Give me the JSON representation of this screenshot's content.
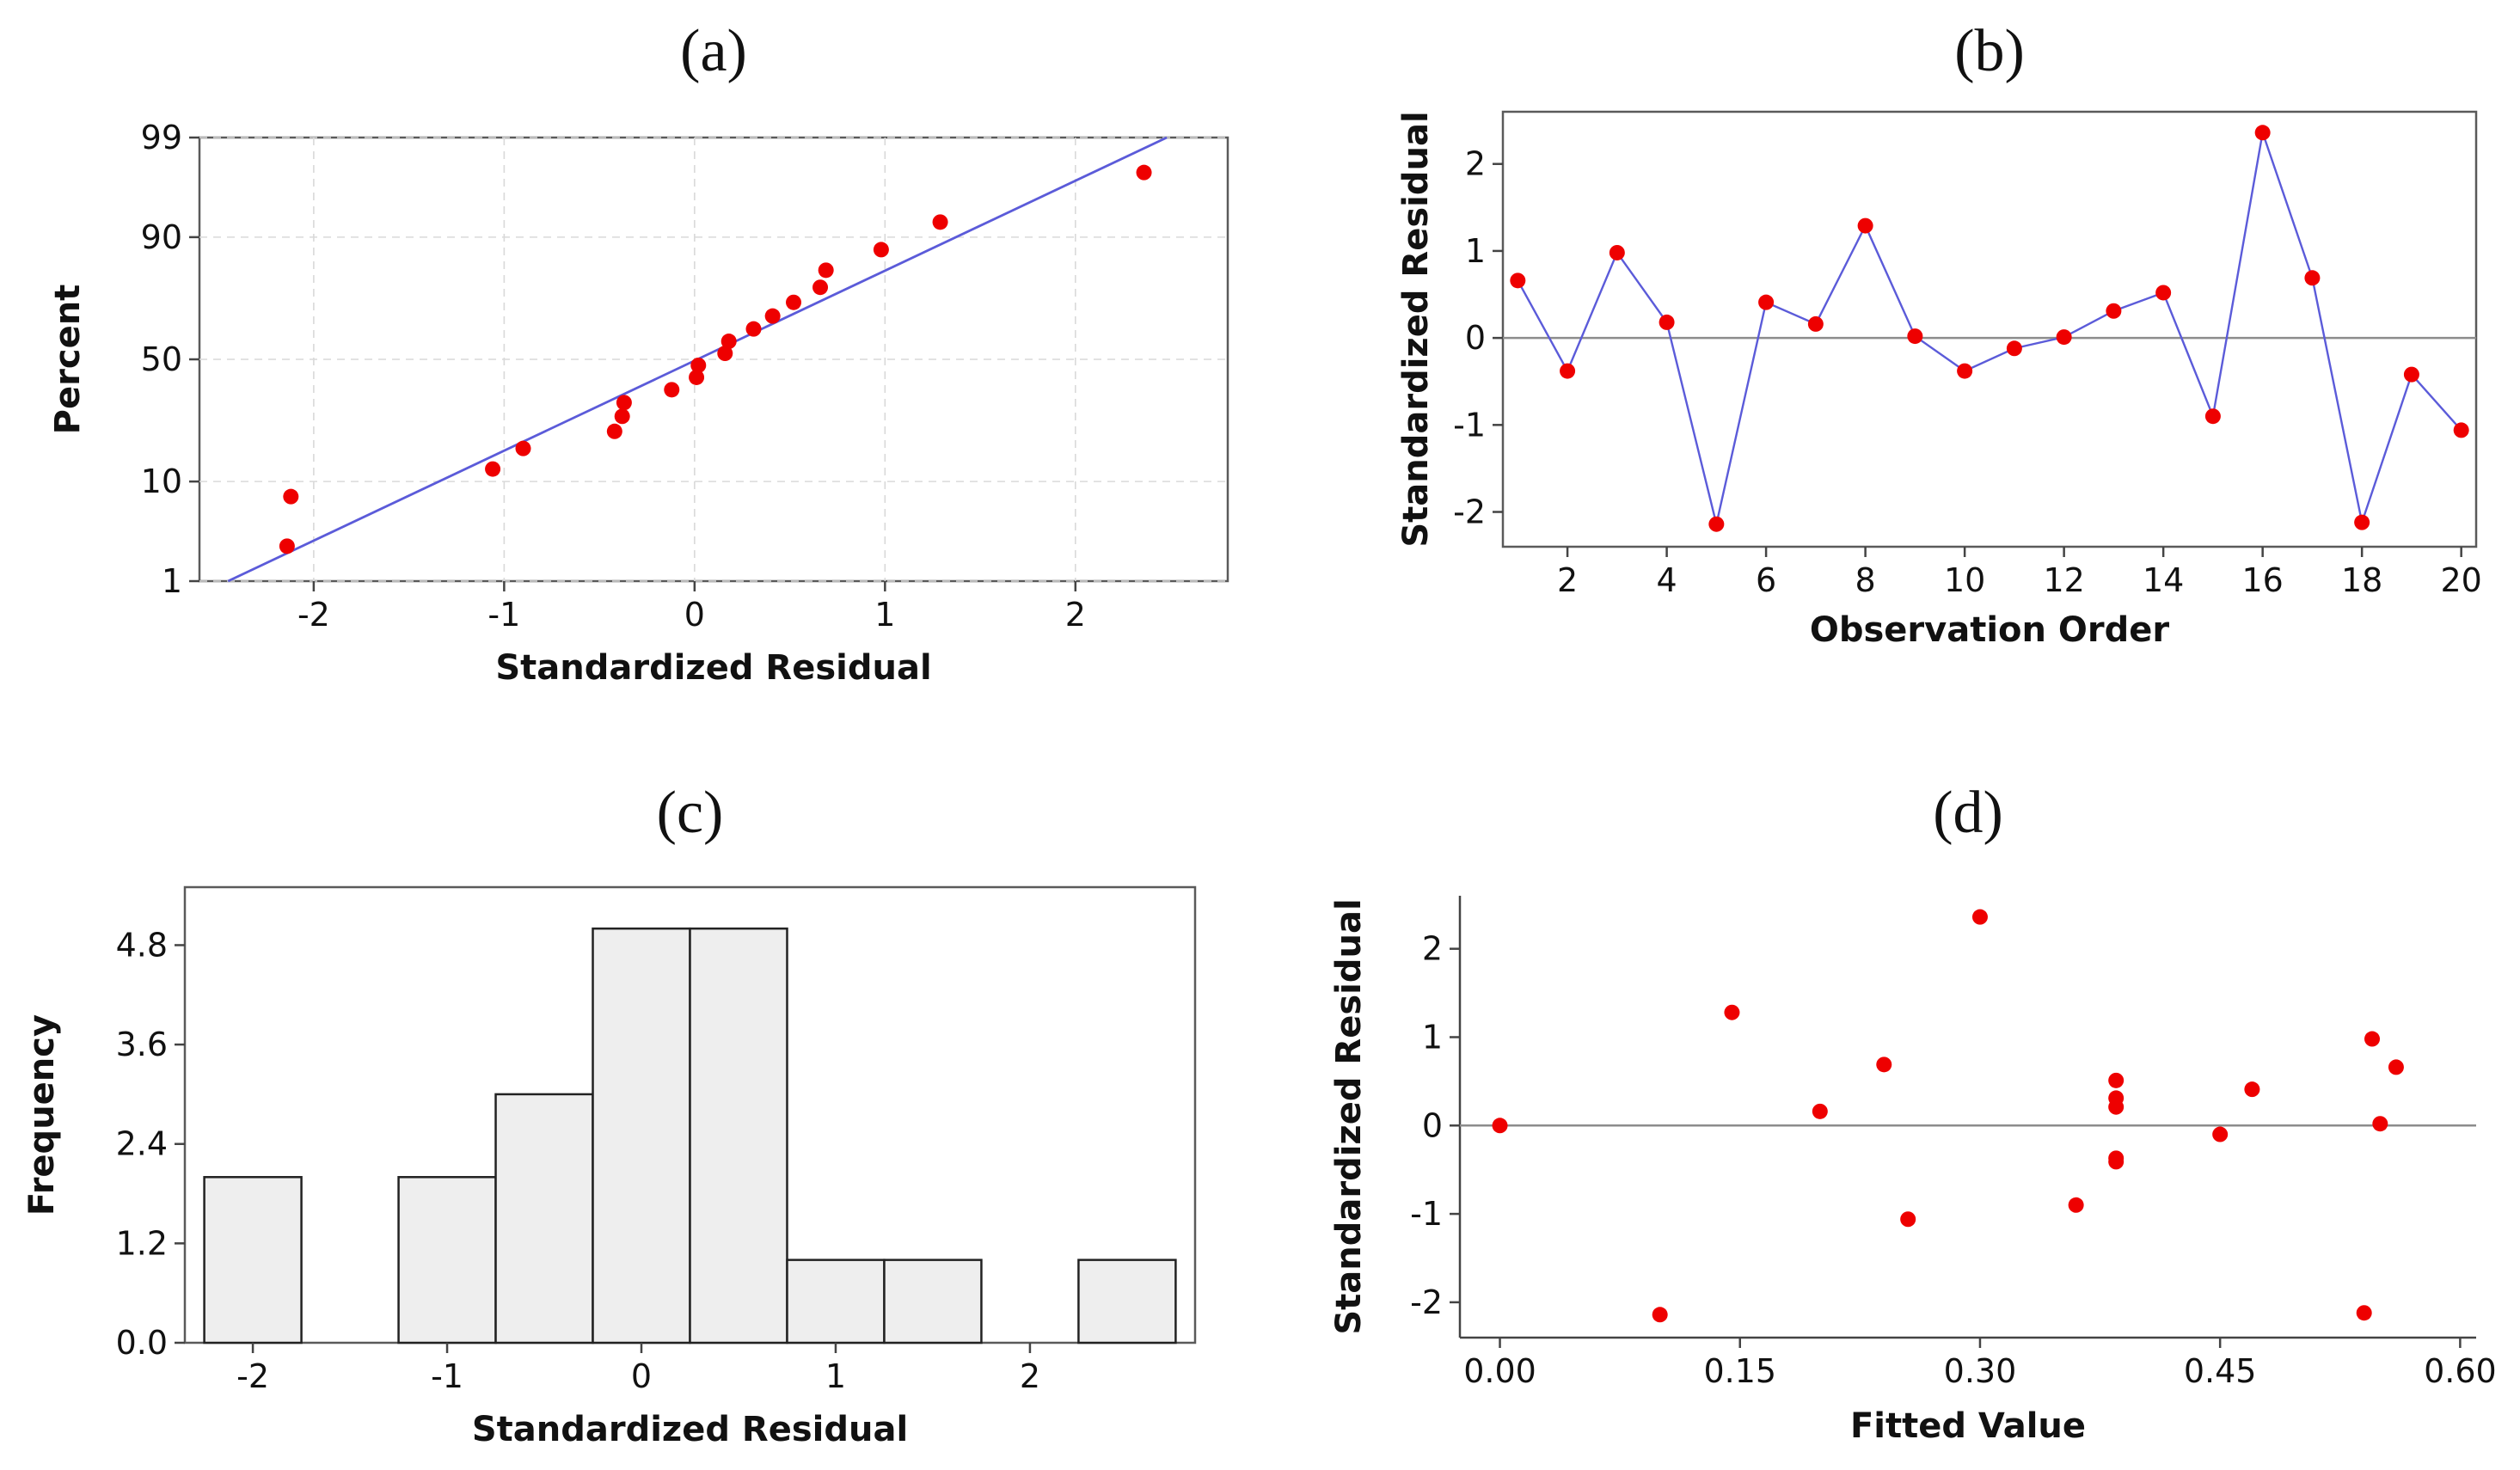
{
  "colors": {
    "point": "#ee0000",
    "line": "#5b5bd9",
    "bar_fill": "#eeeeee",
    "reference": "#8c8c8c"
  },
  "chart_data": [
    {
      "id": "a",
      "panel_label": "(a)",
      "type": "scatter",
      "subtype": "normal probability plot",
      "xlabel": "Standardized Residual",
      "ylabel": "Percent",
      "xlim": [
        -2.6,
        2.8
      ],
      "x_ticks": [
        -2,
        -1,
        0,
        1,
        2
      ],
      "x_tick_labels": [
        "-2",
        "-1",
        "0",
        "1",
        "2"
      ],
      "y_ticks": [
        1,
        10,
        50,
        90,
        99
      ],
      "y_tick_labels": [
        "1",
        "10",
        "50",
        "90",
        "99"
      ],
      "y_scale": "normal-probability",
      "grid": true,
      "fit_line": {
        "x": [
          -2.45,
          2.48
        ],
        "percent": [
          1,
          99
        ]
      },
      "points": [
        {
          "x": -2.14,
          "percent": 2.5
        },
        {
          "x": -2.12,
          "percent": 7.5
        },
        {
          "x": -1.06,
          "percent": 12.5
        },
        {
          "x": -0.9,
          "percent": 17.5
        },
        {
          "x": -0.42,
          "percent": 22.5
        },
        {
          "x": -0.38,
          "percent": 27.5
        },
        {
          "x": -0.37,
          "percent": 32.5
        },
        {
          "x": -0.12,
          "percent": 37.5
        },
        {
          "x": 0.01,
          "percent": 42.5
        },
        {
          "x": 0.02,
          "percent": 47.5
        },
        {
          "x": 0.16,
          "percent": 52.5
        },
        {
          "x": 0.18,
          "percent": 57.5
        },
        {
          "x": 0.31,
          "percent": 62.5
        },
        {
          "x": 0.41,
          "percent": 67.5
        },
        {
          "x": 0.52,
          "percent": 72.5
        },
        {
          "x": 0.66,
          "percent": 77.5
        },
        {
          "x": 0.69,
          "percent": 82.5
        },
        {
          "x": 0.98,
          "percent": 87.5
        },
        {
          "x": 1.29,
          "percent": 92.5
        },
        {
          "x": 2.36,
          "percent": 97.5
        }
      ]
    },
    {
      "id": "b",
      "panel_label": "(b)",
      "type": "line",
      "xlabel": "Observation Order",
      "ylabel": "Standardized Residual",
      "xlim": [
        0.7,
        20.3
      ],
      "ylim": [
        -2.4,
        2.6
      ],
      "x_ticks": [
        2,
        4,
        6,
        8,
        10,
        12,
        14,
        16,
        18,
        20
      ],
      "x_tick_labels": [
        "2",
        "4",
        "6",
        "8",
        "10",
        "12",
        "14",
        "16",
        "18",
        "20"
      ],
      "y_ticks": [
        -2,
        -1,
        0,
        1,
        2
      ],
      "y_tick_labels": [
        "-2",
        "-1",
        "0",
        "1",
        "2"
      ],
      "reference_line": 0,
      "x": [
        1,
        2,
        3,
        4,
        5,
        6,
        7,
        8,
        9,
        10,
        11,
        12,
        13,
        14,
        15,
        16,
        17,
        18,
        19,
        20
      ],
      "y": [
        0.66,
        -0.38,
        0.98,
        0.18,
        -2.14,
        0.41,
        0.16,
        1.29,
        0.02,
        -0.38,
        -0.12,
        0.01,
        0.31,
        0.52,
        -0.9,
        2.36,
        0.69,
        -2.12,
        -0.42,
        -1.06
      ]
    },
    {
      "id": "c",
      "panel_label": "(c)",
      "type": "bar",
      "subtype": "histogram",
      "xlabel": "Standardized Residual",
      "ylabel": "Frequency",
      "xlim": [
        -2.35,
        2.85
      ],
      "ylim": [
        0,
        5.5
      ],
      "x_ticks": [
        -2,
        -1,
        0,
        1,
        2
      ],
      "x_tick_labels": [
        "-2",
        "-1",
        "0",
        "1",
        "2"
      ],
      "y_ticks": [
        0,
        1.2,
        2.4,
        3.6,
        4.8
      ],
      "y_tick_labels": [
        "0.0",
        "1.2",
        "2.4",
        "3.6",
        "4.8"
      ],
      "bin_width": 0.5,
      "bin_centers": [
        -2.0,
        -1.5,
        -1.0,
        -0.5,
        0.0,
        0.5,
        1.0,
        1.5,
        2.0,
        2.5
      ],
      "values": [
        2,
        0,
        2,
        3,
        5,
        5,
        1,
        1,
        0,
        1
      ]
    },
    {
      "id": "d",
      "panel_label": "(d)",
      "type": "scatter",
      "xlabel": "Fitted Value",
      "ylabel": "Standardized Residual",
      "xlim": [
        -0.025,
        0.61
      ],
      "ylim": [
        -2.4,
        2.6
      ],
      "x_ticks": [
        0.0,
        0.15,
        0.3,
        0.45,
        0.6
      ],
      "x_tick_labels": [
        "0.00",
        "0.15",
        "0.30",
        "0.45",
        "0.60"
      ],
      "y_ticks": [
        -2,
        -1,
        0,
        1,
        2
      ],
      "y_tick_labels": [
        "-2",
        "-1",
        "0",
        "1",
        "2"
      ],
      "reference_line": 0,
      "points": [
        {
          "x": 0.0,
          "y": 0.0
        },
        {
          "x": 0.1,
          "y": -2.14
        },
        {
          "x": 0.145,
          "y": 1.28
        },
        {
          "x": 0.2,
          "y": 0.16
        },
        {
          "x": 0.24,
          "y": 0.69
        },
        {
          "x": 0.255,
          "y": -1.06
        },
        {
          "x": 0.3,
          "y": 2.36
        },
        {
          "x": 0.36,
          "y": -0.9
        },
        {
          "x": 0.385,
          "y": 0.51
        },
        {
          "x": 0.385,
          "y": 0.31
        },
        {
          "x": 0.385,
          "y": 0.21
        },
        {
          "x": 0.385,
          "y": -0.37
        },
        {
          "x": 0.385,
          "y": -0.41
        },
        {
          "x": 0.45,
          "y": -0.1
        },
        {
          "x": 0.47,
          "y": 0.41
        },
        {
          "x": 0.54,
          "y": -2.12
        },
        {
          "x": 0.545,
          "y": 0.98
        },
        {
          "x": 0.55,
          "y": 0.02
        },
        {
          "x": 0.56,
          "y": 0.66
        }
      ]
    }
  ]
}
